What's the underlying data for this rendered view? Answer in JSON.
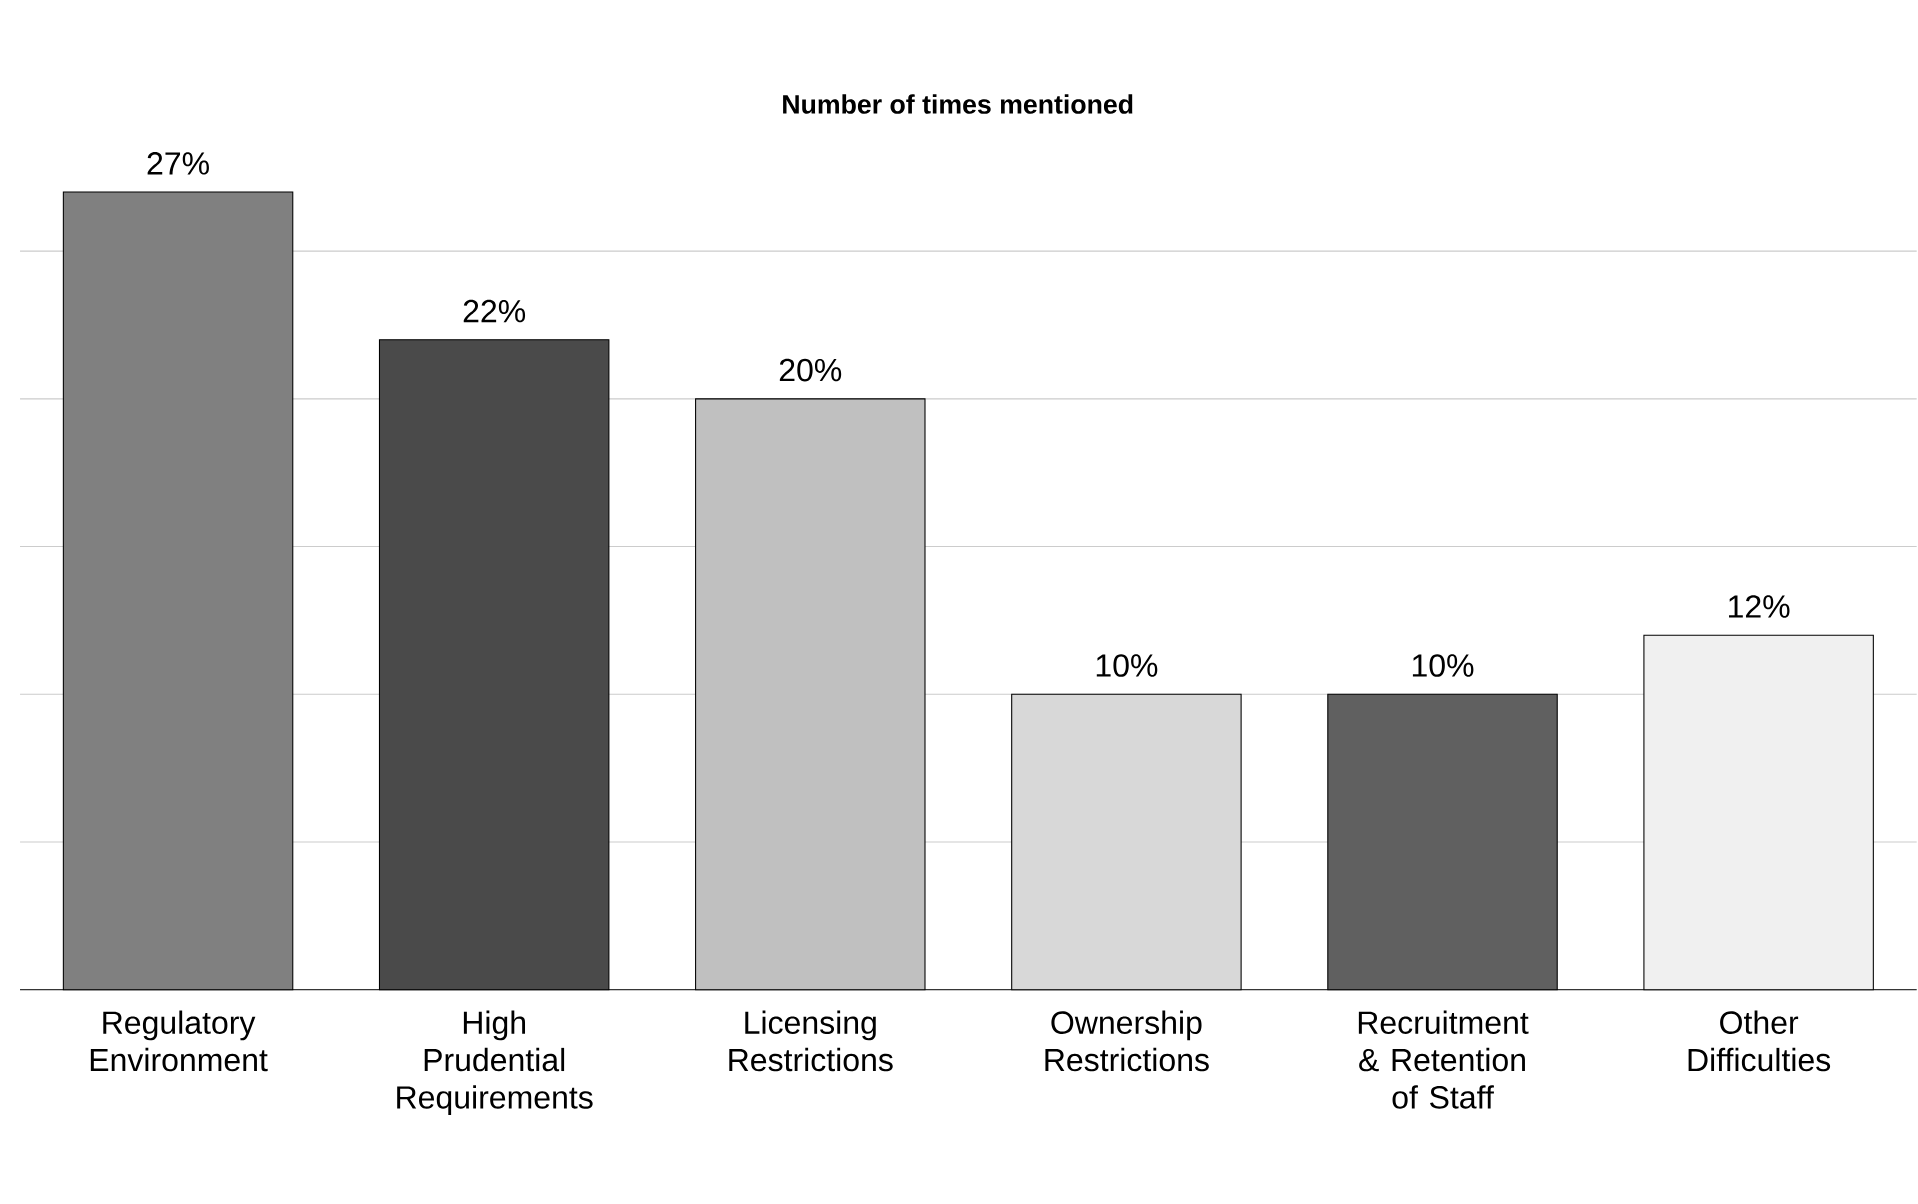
{
  "chart_data": {
    "type": "bar",
    "title": "Number of times mentioned",
    "categories": [
      "Regulatory Environment",
      "High Prudential Requirements",
      "Licensing Restrictions",
      "Ownership Restrictions",
      "Recruitment & Retention of Staff",
      "Other Difficulties"
    ],
    "values": [
      27,
      22,
      20,
      10,
      10,
      12
    ],
    "value_labels": [
      "27%",
      "22%",
      "20%",
      "10%",
      "10%",
      "12%"
    ],
    "colors": [
      "#808080",
      "#4a4a4a",
      "#c0c0c0",
      "#d8d8d8",
      "#606060",
      "#f0f0f0"
    ],
    "grid": "y",
    "tick_labels": "x"
  }
}
